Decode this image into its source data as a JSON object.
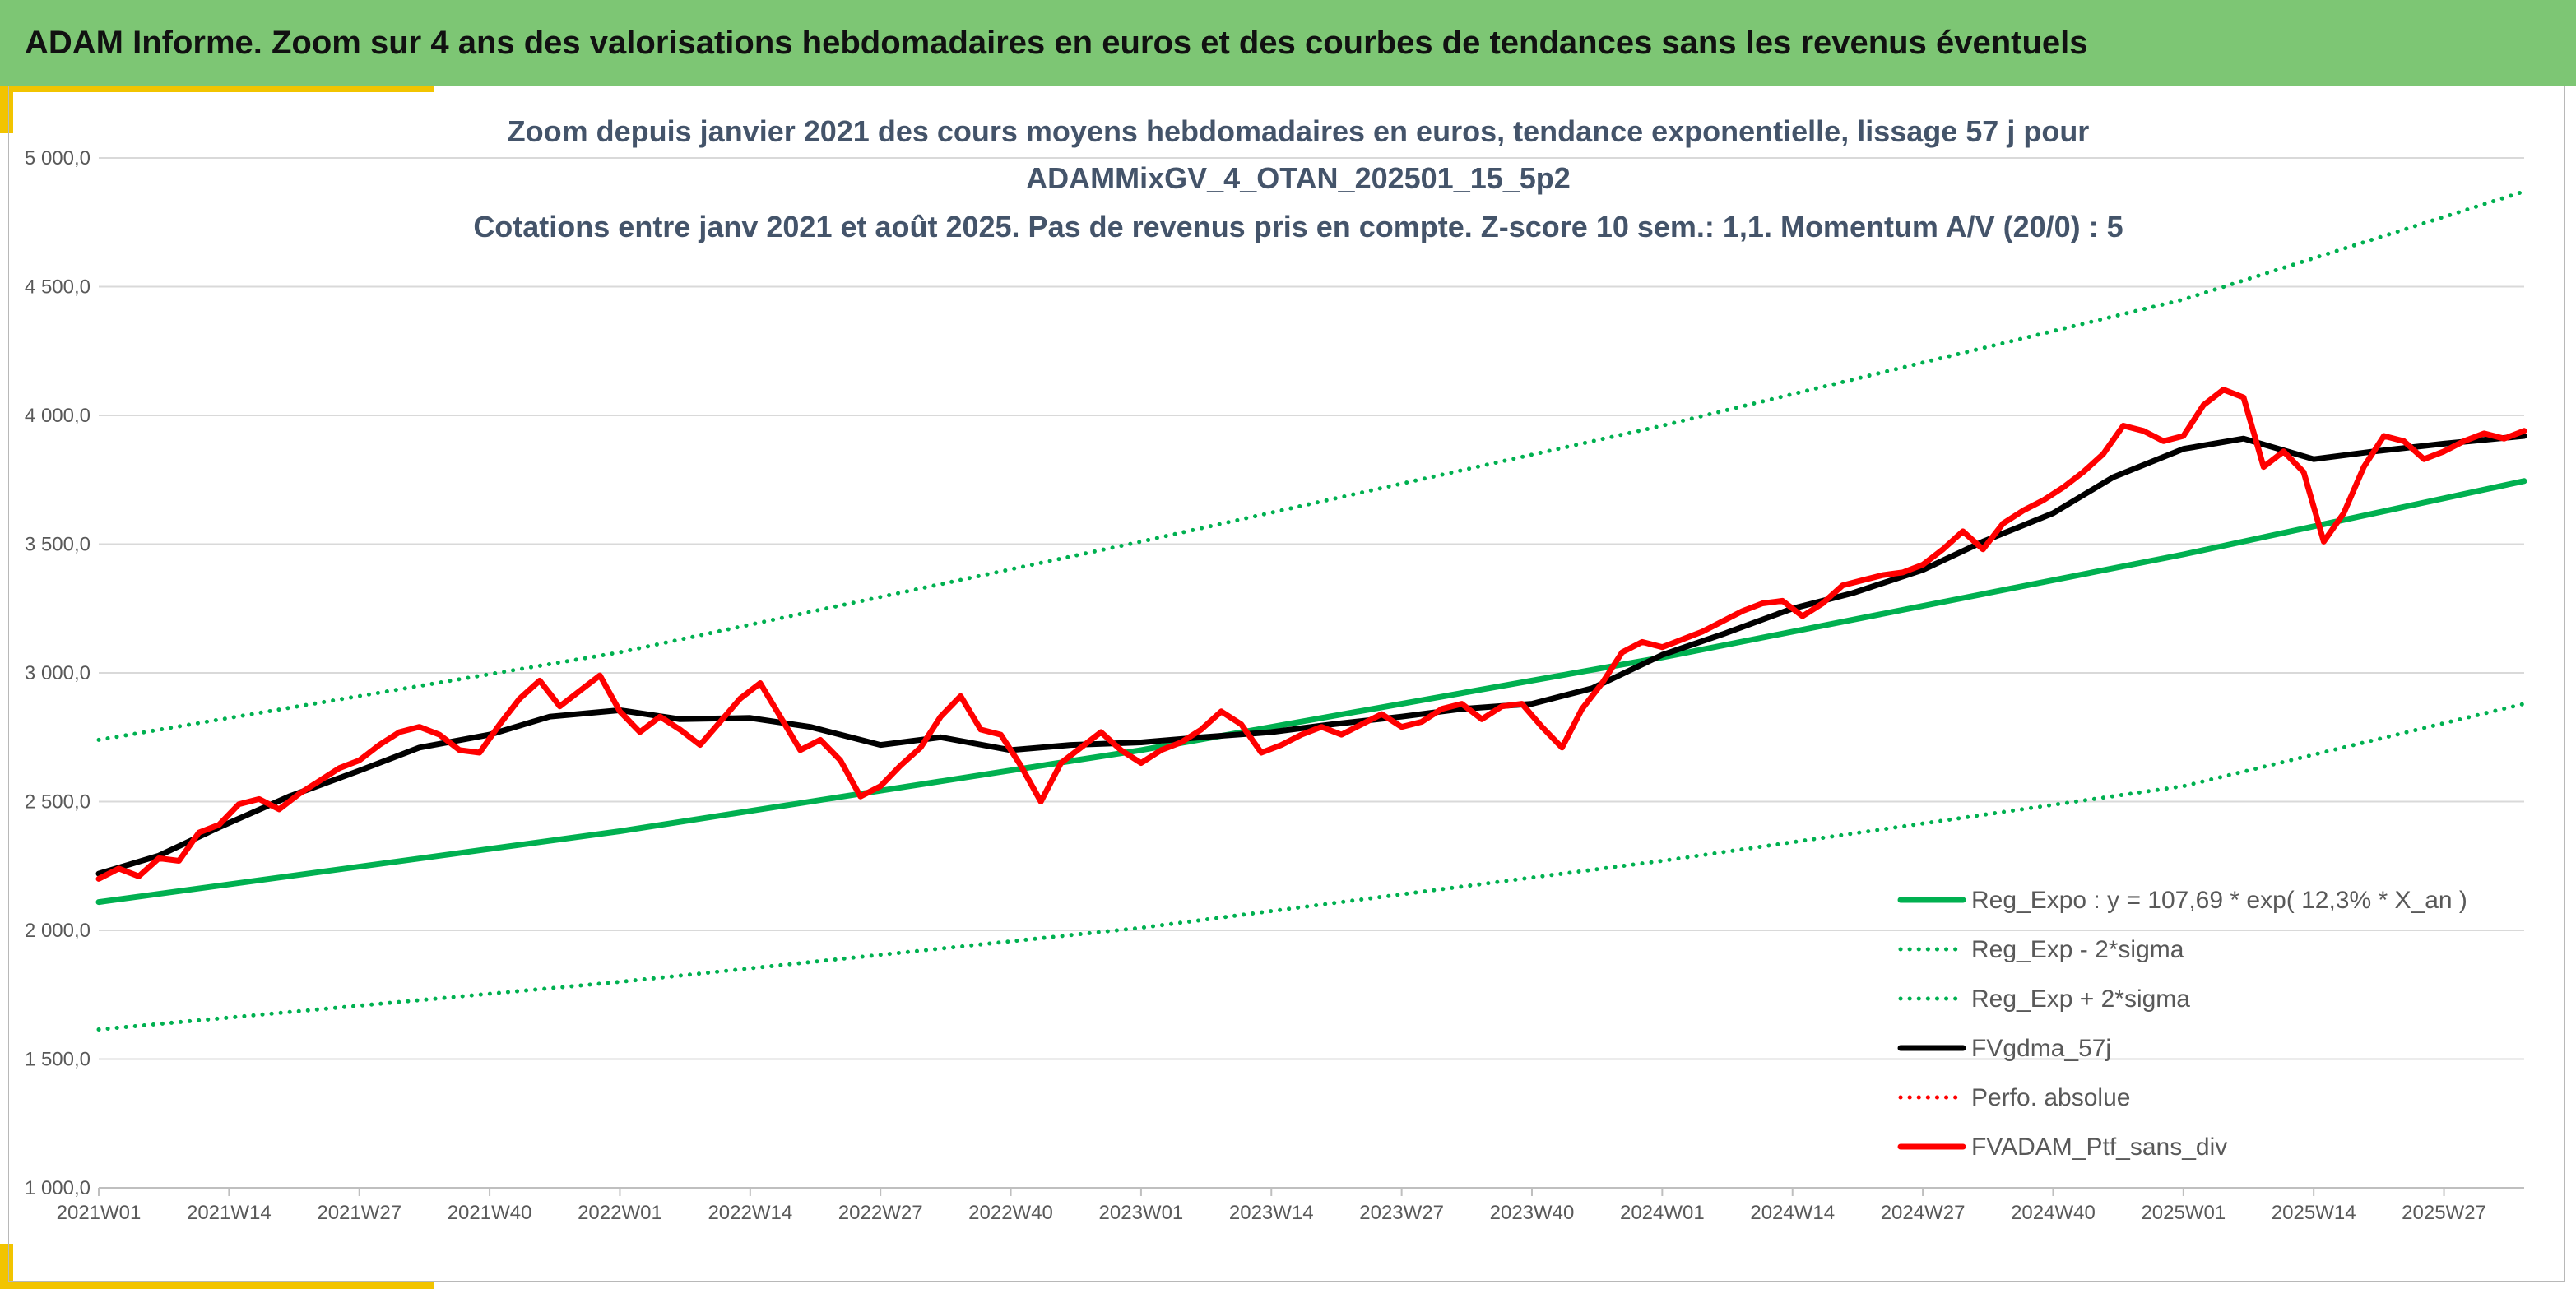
{
  "banner": {
    "title": "ADAM Informe. Zoom sur 4 ans des valorisations hebdomadaires en euros et des courbes de tendances sans les revenus éventuels",
    "background_color": "#7dc674",
    "accent_color": "#f2c400"
  },
  "chart_data": {
    "type": "line",
    "title_lines": [
      "Zoom depuis janvier 2021 des cours moyens hebdomadaires en euros, tendance exponentielle, lissage 57 j pour",
      "ADAMMixGV_4_OTAN_202501_15_5p2",
      "Cotations entre janv 2021 et août 2025. Pas de revenus pris en compte. Z-score 10 sem.: 1,1. Momentum A/V (20/0) : 5"
    ],
    "xlabel": "",
    "ylabel": "",
    "ylim": [
      1000,
      5000
    ],
    "y_ticks": [
      "1 000,0",
      "1 500,0",
      "2 000,0",
      "2 500,0",
      "3 000,0",
      "3 500,0",
      "4 000,0",
      "4 500,0",
      "5 000,0"
    ],
    "x_ticks": [
      "2021W01",
      "2021W14",
      "2021W27",
      "2021W40",
      "2022W01",
      "2022W14",
      "2022W27",
      "2022W40",
      "2023W01",
      "2023W14",
      "2023W27",
      "2023W40",
      "2024W01",
      "2024W14",
      "2024W27",
      "2024W40",
      "2025W01",
      "2025W14",
      "2025W27"
    ],
    "x_tick_weeks": [
      0,
      13,
      26,
      39,
      52,
      65,
      78,
      91,
      104,
      117,
      130,
      143,
      156,
      169,
      182,
      195,
      208,
      221,
      234
    ],
    "x_range_weeks": [
      0,
      242
    ],
    "grid": true,
    "legend_position": "bottom-right",
    "series": [
      {
        "name": "Reg_Expo : y = 107,69 * exp( 12,3% *  X_an )",
        "color": "#00b050",
        "style": "solid",
        "width": 7,
        "x": [
          0,
          52,
          104,
          156,
          208,
          242
        ],
        "values": [
          2110,
          2385,
          2700,
          3060,
          3460,
          3745
        ]
      },
      {
        "name": "Reg_Exp - 2*sigma",
        "color": "#00b050",
        "style": "dotted",
        "width": 5,
        "x": [
          0,
          52,
          104,
          156,
          208,
          242
        ],
        "values": [
          1615,
          1800,
          2010,
          2270,
          2560,
          2880
        ]
      },
      {
        "name": "Reg_Exp + 2*sigma",
        "color": "#00b050",
        "style": "dotted",
        "width": 5,
        "x": [
          0,
          52,
          104,
          156,
          208,
          242
        ],
        "values": [
          2740,
          3080,
          3510,
          3960,
          4450,
          4870
        ]
      },
      {
        "name": "FVgdma_57j",
        "color": "#000000",
        "style": "solid",
        "width": 7,
        "x": [
          0,
          6,
          12,
          19,
          26,
          32,
          39,
          45,
          52,
          58,
          65,
          71,
          78,
          84,
          91,
          97,
          104,
          110,
          117,
          123,
          130,
          136,
          143,
          149,
          156,
          162,
          169,
          175,
          182,
          188,
          195,
          201,
          208,
          214,
          221,
          227,
          234,
          242
        ],
        "values": [
          2220,
          2290,
          2400,
          2520,
          2620,
          2710,
          2760,
          2830,
          2855,
          2820,
          2825,
          2790,
          2720,
          2750,
          2700,
          2720,
          2730,
          2750,
          2770,
          2800,
          2830,
          2860,
          2880,
          2940,
          3070,
          3150,
          3250,
          3310,
          3400,
          3510,
          3620,
          3760,
          3870,
          3910,
          3830,
          3860,
          3890,
          3920
        ]
      },
      {
        "name": "Perfo. absolue",
        "color": "#ff0000",
        "style": "dotted",
        "width": 5,
        "x": [],
        "values": []
      },
      {
        "name": "FVADAM_Ptf_sans_div",
        "color": "#ff0000",
        "style": "solid",
        "width": 7,
        "x": [
          0,
          2,
          4,
          6,
          8,
          10,
          12,
          14,
          16,
          18,
          20,
          22,
          24,
          26,
          28,
          30,
          32,
          34,
          36,
          38,
          40,
          42,
          44,
          46,
          48,
          50,
          52,
          54,
          56,
          58,
          60,
          62,
          64,
          66,
          68,
          70,
          72,
          74,
          76,
          78,
          80,
          82,
          84,
          86,
          88,
          90,
          92,
          94,
          96,
          98,
          100,
          102,
          104,
          106,
          108,
          110,
          112,
          114,
          116,
          118,
          120,
          122,
          124,
          126,
          128,
          130,
          132,
          134,
          136,
          138,
          140,
          142,
          144,
          146,
          148,
          150,
          152,
          154,
          156,
          158,
          160,
          162,
          164,
          166,
          168,
          170,
          172,
          174,
          176,
          178,
          180,
          182,
          184,
          186,
          188,
          190,
          192,
          194,
          196,
          198,
          200,
          202,
          204,
          206,
          208,
          210,
          212,
          214,
          216,
          218,
          220,
          222,
          224,
          226,
          228,
          230,
          232,
          234,
          236,
          238,
          240,
          242
        ],
        "values": [
          2200,
          2240,
          2210,
          2280,
          2270,
          2380,
          2410,
          2490,
          2510,
          2470,
          2530,
          2580,
          2630,
          2660,
          2720,
          2770,
          2790,
          2760,
          2700,
          2690,
          2800,
          2900,
          2970,
          2870,
          2930,
          2990,
          2850,
          2770,
          2830,
          2780,
          2720,
          2810,
          2900,
          2960,
          2830,
          2700,
          2740,
          2660,
          2520,
          2560,
          2640,
          2710,
          2830,
          2910,
          2780,
          2760,
          2640,
          2500,
          2650,
          2710,
          2770,
          2700,
          2650,
          2700,
          2730,
          2780,
          2850,
          2800,
          2690,
          2720,
          2760,
          2790,
          2760,
          2800,
          2840,
          2790,
          2810,
          2860,
          2880,
          2820,
          2870,
          2880,
          2790,
          2710,
          2860,
          2960,
          3080,
          3120,
          3100,
          3130,
          3160,
          3200,
          3240,
          3270,
          3280,
          3220,
          3270,
          3340,
          3360,
          3380,
          3390,
          3420,
          3480,
          3550,
          3480,
          3580,
          3630,
          3670,
          3720,
          3780,
          3850,
          3960,
          3940,
          3900,
          3920,
          4040,
          4100,
          4070,
          3800,
          3860,
          3780,
          3510,
          3620,
          3800,
          3920,
          3900,
          3830,
          3860,
          3900,
          3930,
          3910,
          3940
        ]
      }
    ]
  }
}
